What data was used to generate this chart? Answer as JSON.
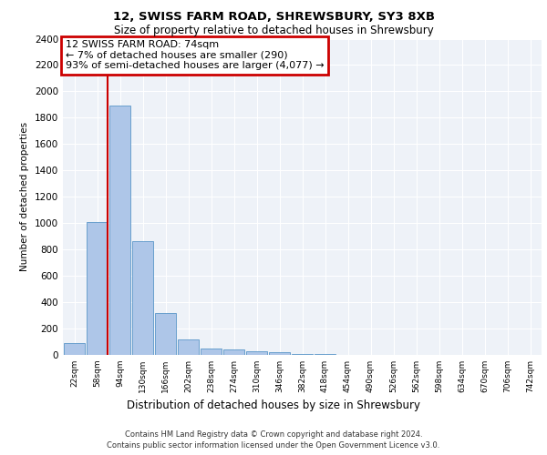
{
  "title": "12, SWISS FARM ROAD, SHREWSBURY, SY3 8XB",
  "subtitle": "Size of property relative to detached houses in Shrewsbury",
  "xlabel": "Distribution of detached houses by size in Shrewsbury",
  "ylabel": "Number of detached properties",
  "bin_labels": [
    "22sqm",
    "58sqm",
    "94sqm",
    "130sqm",
    "166sqm",
    "202sqm",
    "238sqm",
    "274sqm",
    "310sqm",
    "346sqm",
    "382sqm",
    "418sqm",
    "454sqm",
    "490sqm",
    "526sqm",
    "562sqm",
    "598sqm",
    "634sqm",
    "670sqm",
    "706sqm",
    "742sqm"
  ],
  "bar_values": [
    90,
    1010,
    1890,
    860,
    315,
    115,
    50,
    40,
    30,
    20,
    5,
    5,
    2,
    0,
    0,
    0,
    0,
    0,
    0,
    0,
    0
  ],
  "bar_color": "#aec6e8",
  "bar_edge_color": "#5a96c8",
  "property_line_x": 1.444,
  "property_line_color": "#cc0000",
  "annotation_text": "12 SWISS FARM ROAD: 74sqm\n← 7% of detached houses are smaller (290)\n93% of semi-detached houses are larger (4,077) →",
  "annotation_box_color": "#cc0000",
  "ylim": [
    0,
    2400
  ],
  "yticks": [
    0,
    200,
    400,
    600,
    800,
    1000,
    1200,
    1400,
    1600,
    1800,
    2000,
    2200,
    2400
  ],
  "footer_line1": "Contains HM Land Registry data © Crown copyright and database right 2024.",
  "footer_line2": "Contains public sector information licensed under the Open Government Licence v3.0.",
  "axes_background": "#eef2f8"
}
